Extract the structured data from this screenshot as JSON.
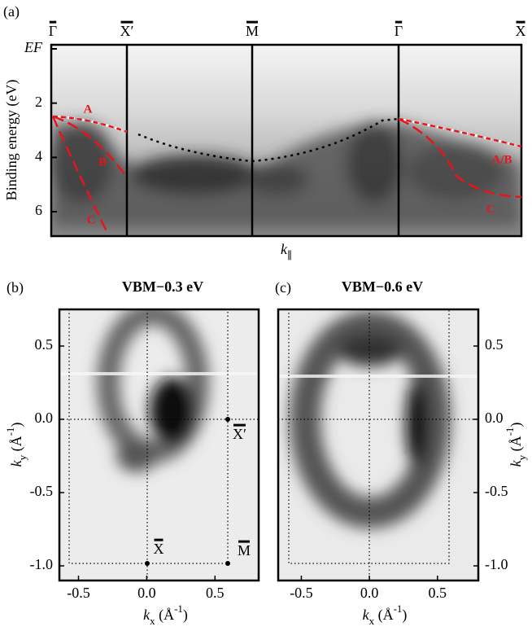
{
  "panel_a": {
    "label": "(a)",
    "points": [
      "Γ",
      "X′",
      "M",
      "Γ",
      "X"
    ],
    "ylabel": "Binding energy (eV)",
    "xlabel": [
      "k",
      "∥"
    ],
    "ylim": [
      -0.15,
      6.9
    ],
    "yticks": [
      {
        "value": 0,
        "label": "EF"
      },
      2,
      4,
      6
    ],
    "bands": [
      "A",
      "B",
      "C",
      "A/B",
      "C"
    ]
  },
  "panels": [
    {
      "label": "(b)",
      "title": "VBM−0.3 eV",
      "xlim": [
        -0.64,
        0.82
      ],
      "ylim": [
        -1.1,
        0.75
      ],
      "xticks": [
        -0.5,
        {
          "value": 0,
          "label": "0.0"
        },
        0.5
      ],
      "yticks": [
        0.5,
        {
          "value": 0,
          "label": "0.0"
        },
        -0.5,
        {
          "value": -1,
          "label": "-1.0"
        }
      ],
      "xlabel": [
        "k",
        "x",
        " (Å",
        "-1",
        ")"
      ],
      "ylabel": [
        "k",
        "y",
        " (Å",
        "-1",
        ")"
      ],
      "points": [
        "X′",
        "X",
        "M"
      ]
    },
    {
      "label": "(c)",
      "title": "VBM−0.6 eV",
      "xlim": [
        -0.67,
        0.8
      ],
      "ylim": [
        -1.1,
        0.75
      ],
      "xticks": [
        -0.5,
        {
          "value": 0,
          "label": "0.0"
        },
        0.5
      ],
      "yticks": [
        0.5,
        {
          "value": 0,
          "label": "0.0"
        },
        -0.5,
        {
          "value": -1,
          "label": "-1.0"
        }
      ],
      "xlabel": [
        "k",
        "x",
        " (Å",
        "-1",
        ")"
      ],
      "ylabel": [
        "k",
        "y",
        " (Å",
        "-1",
        ")"
      ]
    }
  ]
}
